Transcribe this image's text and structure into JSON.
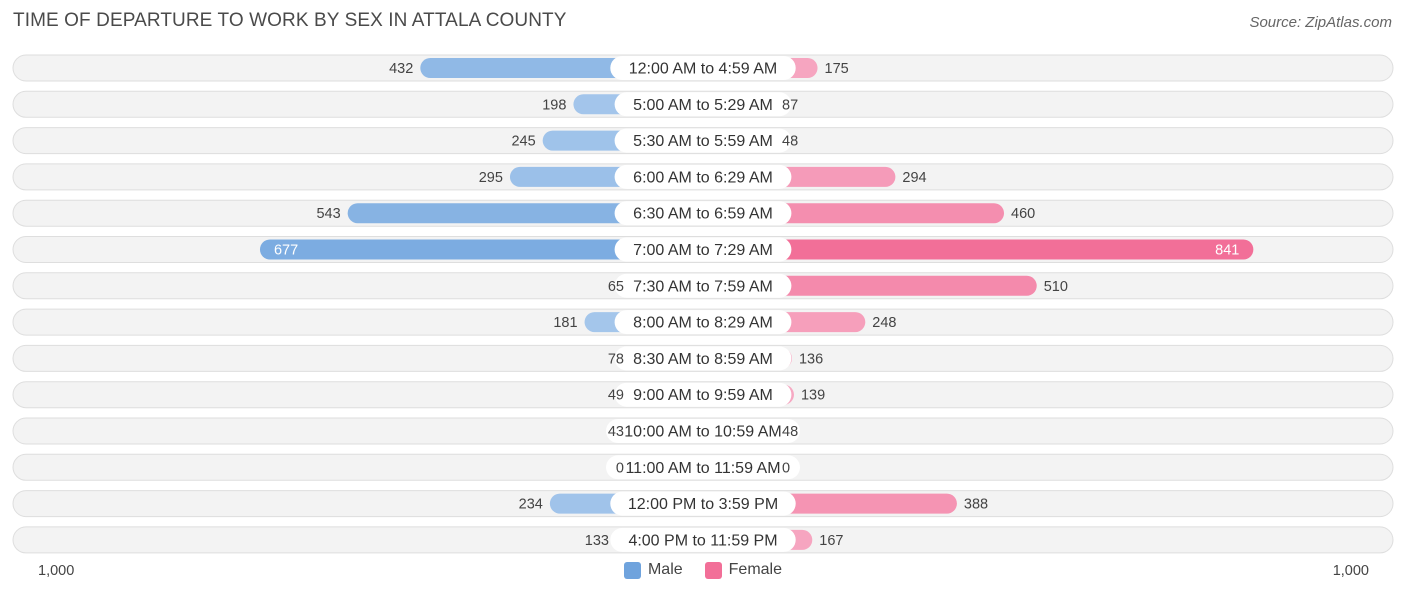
{
  "title": "TIME OF DEPARTURE TO WORK BY SEX IN ATTALA COUNTY",
  "source": "Source: ZipAtlas.com",
  "axis": {
    "left_label": "1,000",
    "right_label": "1,000"
  },
  "legend": [
    {
      "label": "Male",
      "color": "#6fa3dd"
    },
    {
      "label": "Female",
      "color": "#f26f98"
    }
  ],
  "chart_data": {
    "type": "bar",
    "orientation": "horizontal-diverging",
    "title": "TIME OF DEPARTURE TO WORK BY SEX IN ATTALA COUNTY",
    "xlim": [
      -1000,
      1000
    ],
    "categories": [
      "12:00 AM to 4:59 AM",
      "5:00 AM to 5:29 AM",
      "5:30 AM to 5:59 AM",
      "6:00 AM to 6:29 AM",
      "6:30 AM to 6:59 AM",
      "7:00 AM to 7:29 AM",
      "7:30 AM to 7:59 AM",
      "8:00 AM to 8:29 AM",
      "8:30 AM to 8:59 AM",
      "9:00 AM to 9:59 AM",
      "10:00 AM to 10:59 AM",
      "11:00 AM to 11:59 AM",
      "12:00 PM to 3:59 PM",
      "4:00 PM to 11:59 PM"
    ],
    "series": [
      {
        "name": "Male",
        "values": [
          432,
          198,
          245,
          295,
          543,
          677,
          65,
          181,
          78,
          49,
          43,
          0,
          234,
          133
        ]
      },
      {
        "name": "Female",
        "values": [
          175,
          87,
          48,
          294,
          460,
          841,
          510,
          248,
          136,
          139,
          48,
          0,
          388,
          167
        ]
      }
    ],
    "value_labels": {
      "male": [
        "432",
        "198",
        "245",
        "295",
        "543",
        "677",
        "65",
        "181",
        "78",
        "49",
        "43",
        "0",
        "234",
        "133"
      ],
      "female": [
        "175",
        "87",
        "48",
        "294",
        "460",
        "841",
        "510",
        "248",
        "136",
        "139",
        "48",
        "0",
        "388",
        "167"
      ]
    }
  }
}
